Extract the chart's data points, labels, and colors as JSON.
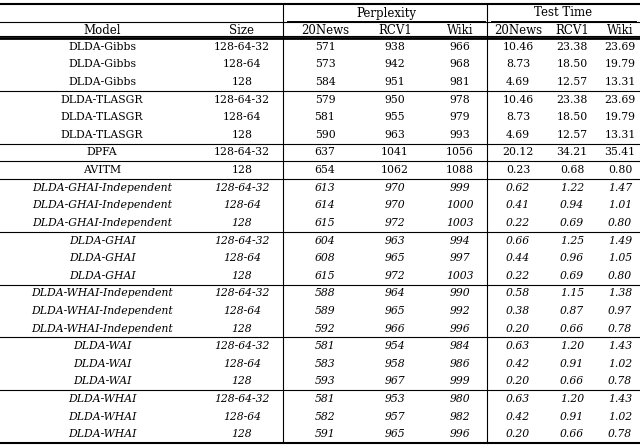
{
  "rows": [
    {
      "model": "DLDA-Gibbs",
      "size": "128-64-32",
      "p20": "571",
      "pR": "938",
      "pW": "966",
      "t20": "10.46",
      "tR": "23.38",
      "tW": "23.69",
      "italic": false,
      "group_end": true
    },
    {
      "model": "DLDA-Gibbs",
      "size": "128-64",
      "p20": "573",
      "pR": "942",
      "pW": "968",
      "t20": "8.73",
      "tR": "18.50",
      "tW": "19.79",
      "italic": false,
      "group_end": false
    },
    {
      "model": "DLDA-Gibbs",
      "size": "128",
      "p20": "584",
      "pR": "951",
      "pW": "981",
      "t20": "4.69",
      "tR": "12.57",
      "tW": "13.31",
      "italic": false,
      "group_end": false
    },
    {
      "model": "DLDA-TLASGR",
      "size": "128-64-32",
      "p20": "579",
      "pR": "950",
      "pW": "978",
      "t20": "10.46",
      "tR": "23.38",
      "tW": "23.69",
      "italic": false,
      "group_end": false
    },
    {
      "model": "DLDA-TLASGR",
      "size": "128-64",
      "p20": "581",
      "pR": "955",
      "pW": "979",
      "t20": "8.73",
      "tR": "18.50",
      "tW": "19.79",
      "italic": false,
      "group_end": false
    },
    {
      "model": "DLDA-TLASGR",
      "size": "128",
      "p20": "590",
      "pR": "963",
      "pW": "993",
      "t20": "4.69",
      "tR": "12.57",
      "tW": "13.31",
      "italic": false,
      "group_end": false
    },
    {
      "model": "DPFA",
      "size": "128-64-32",
      "p20": "637",
      "pR": "1041",
      "pW": "1056",
      "t20": "20.12",
      "tR": "34.21",
      "tW": "35.41",
      "italic": false,
      "group_end": false
    },
    {
      "model": "AVITM",
      "size": "128",
      "p20": "654",
      "pR": "1062",
      "pW": "1088",
      "t20": "0.23",
      "tR": "0.68",
      "tW": "0.80",
      "italic": false,
      "group_end": false
    },
    {
      "model": "DLDA-GHAI-Independent",
      "size": "128-64-32",
      "p20": "613",
      "pR": "970",
      "pW": "999",
      "t20": "0.62",
      "tR": "1.22",
      "tW": "1.47",
      "italic": true,
      "group_end": false
    },
    {
      "model": "DLDA-GHAI-Independent",
      "size": "128-64",
      "p20": "614",
      "pR": "970",
      "pW": "1000",
      "t20": "0.41",
      "tR": "0.94",
      "tW": "1.01",
      "italic": true,
      "group_end": false
    },
    {
      "model": "DLDA-GHAI-Independent",
      "size": "128",
      "p20": "615",
      "pR": "972",
      "pW": "1003",
      "t20": "0.22",
      "tR": "0.69",
      "tW": "0.80",
      "italic": true,
      "group_end": false
    },
    {
      "model": "DLDA-GHAI",
      "size": "128-64-32",
      "p20": "604",
      "pR": "963",
      "pW": "994",
      "t20": "0.66",
      "tR": "1.25",
      "tW": "1.49",
      "italic": true,
      "group_end": false
    },
    {
      "model": "DLDA-GHAI",
      "size": "128-64",
      "p20": "608",
      "pR": "965",
      "pW": "997",
      "t20": "0.44",
      "tR": "0.96",
      "tW": "1.05",
      "italic": true,
      "group_end": false
    },
    {
      "model": "DLDA-GHAI",
      "size": "128",
      "p20": "615",
      "pR": "972",
      "pW": "1003",
      "t20": "0.22",
      "tR": "0.69",
      "tW": "0.80",
      "italic": true,
      "group_end": false
    },
    {
      "model": "DLDA-WHAI-Independent",
      "size": "128-64-32",
      "p20": "588",
      "pR": "964",
      "pW": "990",
      "t20": "0.58",
      "tR": "1.15",
      "tW": "1.38",
      "italic": true,
      "group_end": false
    },
    {
      "model": "DLDA-WHAI-Independent",
      "size": "128-64",
      "p20": "589",
      "pR": "965",
      "pW": "992",
      "t20": "0.38",
      "tR": "0.87",
      "tW": "0.97",
      "italic": true,
      "group_end": false
    },
    {
      "model": "DLDA-WHAI-Independent",
      "size": "128",
      "p20": "592",
      "pR": "966",
      "pW": "996",
      "t20": "0.20",
      "tR": "0.66",
      "tW": "0.78",
      "italic": true,
      "group_end": false
    },
    {
      "model": "DLDA-WAI",
      "size": "128-64-32",
      "p20": "581",
      "pR": "954",
      "pW": "984",
      "t20": "0.63",
      "tR": "1.20",
      "tW": "1.43",
      "italic": true,
      "group_end": false
    },
    {
      "model": "DLDA-WAI",
      "size": "128-64",
      "p20": "583",
      "pR": "958",
      "pW": "986",
      "t20": "0.42",
      "tR": "0.91",
      "tW": "1.02",
      "italic": true,
      "group_end": false
    },
    {
      "model": "DLDA-WAI",
      "size": "128",
      "p20": "593",
      "pR": "967",
      "pW": "999",
      "t20": "0.20",
      "tR": "0.66",
      "tW": "0.78",
      "italic": true,
      "group_end": false
    },
    {
      "model": "DLDA-WHAI",
      "size": "128-64-32",
      "p20": "581",
      "pR": "953",
      "pW": "980",
      "t20": "0.63",
      "tR": "1.20",
      "tW": "1.43",
      "italic": true,
      "group_end": false
    },
    {
      "model": "DLDA-WHAI",
      "size": "128-64",
      "p20": "582",
      "pR": "957",
      "pW": "982",
      "t20": "0.42",
      "tR": "0.91",
      "tW": "1.02",
      "italic": true,
      "group_end": false
    },
    {
      "model": "DLDA-WHAI",
      "size": "128",
      "p20": "591",
      "pR": "965",
      "pW": "996",
      "t20": "0.20",
      "tR": "0.66",
      "tW": "0.78",
      "italic": true,
      "group_end": false
    }
  ],
  "group_separators_after": [
    2,
    5,
    6,
    7,
    10,
    13,
    16,
    19
  ],
  "figsize": [
    6.4,
    4.48
  ],
  "dpi": 100,
  "bg_color": "#ffffff",
  "text_color": "#000000",
  "line_color": "#000000"
}
